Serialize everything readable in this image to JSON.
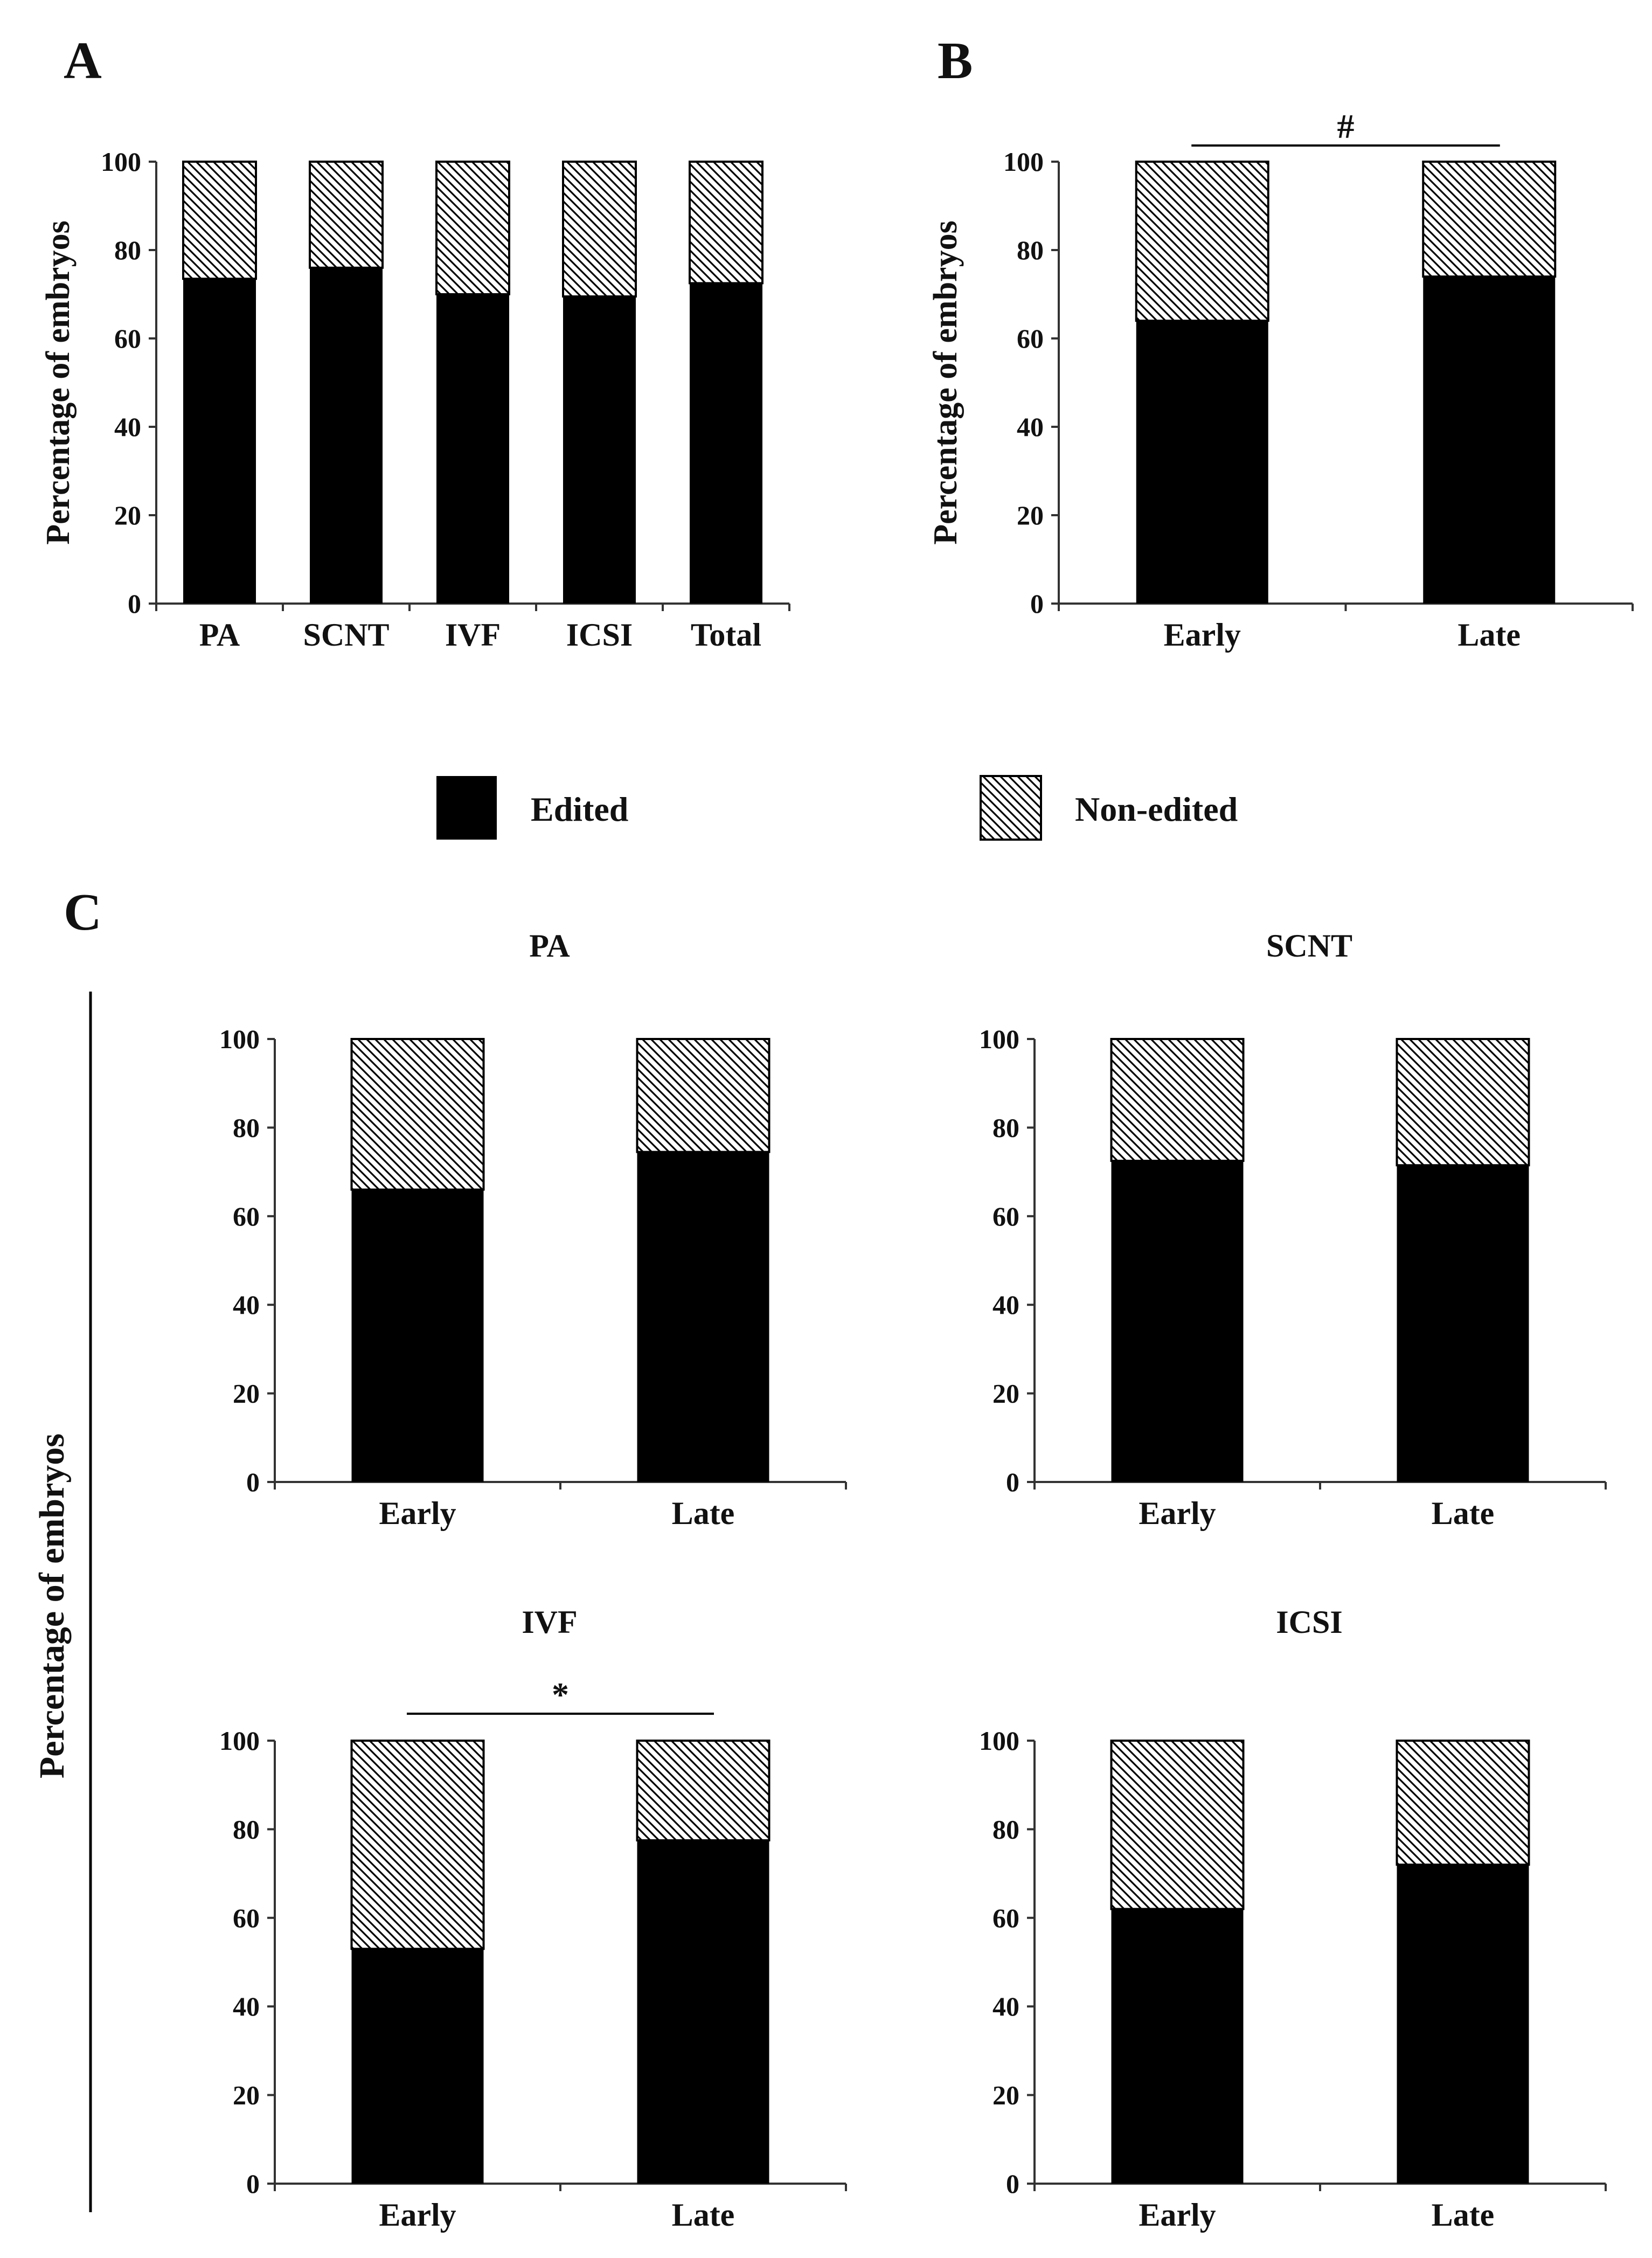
{
  "panel_labels": {
    "a": "A",
    "b": "B",
    "c": "C"
  },
  "legend": {
    "edited": "Edited",
    "non_edited": "Non-edited"
  },
  "colors": {
    "edited": "#000000",
    "non_edited_hatch": "#000000",
    "background": "#ffffff",
    "axis": "#333333"
  },
  "chart_data": [
    {
      "id": "A",
      "type": "bar",
      "stacked": true,
      "title": "",
      "ylabel": "Percentage of embryos",
      "xlabel": "",
      "ylim": [
        0,
        100
      ],
      "yticks": [
        "0",
        "20",
        "40",
        "60",
        "80",
        "100"
      ],
      "categories": [
        "PA",
        "SCNT",
        "IVF",
        "ICSI",
        "Total"
      ],
      "series": [
        {
          "name": "Edited",
          "values": [
            73.5,
            76,
            70,
            69.5,
            72.5
          ]
        },
        {
          "name": "Non-edited",
          "values": [
            26.5,
            24,
            30,
            30.5,
            27.5
          ]
        }
      ],
      "annotation": ""
    },
    {
      "id": "B",
      "type": "bar",
      "stacked": true,
      "title": "",
      "ylabel": "Percentage of embryos",
      "xlabel": "",
      "ylim": [
        0,
        100
      ],
      "yticks": [
        "0",
        "20",
        "40",
        "60",
        "80",
        "100"
      ],
      "categories": [
        "Early",
        "Late"
      ],
      "series": [
        {
          "name": "Edited",
          "values": [
            64,
            74
          ]
        },
        {
          "name": "Non-edited",
          "values": [
            36,
            26
          ]
        }
      ],
      "annotation": "#"
    },
    {
      "id": "C-PA",
      "type": "bar",
      "stacked": true,
      "title": "PA",
      "ylabel": "",
      "xlabel": "",
      "ylim": [
        0,
        100
      ],
      "yticks": [
        "0",
        "20",
        "40",
        "60",
        "80",
        "100"
      ],
      "categories": [
        "Early",
        "Late"
      ],
      "series": [
        {
          "name": "Edited",
          "values": [
            66,
            74.5
          ]
        },
        {
          "name": "Non-edited",
          "values": [
            34,
            25.5
          ]
        }
      ],
      "annotation": ""
    },
    {
      "id": "C-SCNT",
      "type": "bar",
      "stacked": true,
      "title": "SCNT",
      "ylabel": "",
      "xlabel": "",
      "ylim": [
        0,
        100
      ],
      "yticks": [
        "0",
        "20",
        "40",
        "60",
        "80",
        "100"
      ],
      "categories": [
        "Early",
        "Late"
      ],
      "series": [
        {
          "name": "Edited",
          "values": [
            72.5,
            71.5
          ]
        },
        {
          "name": "Non-edited",
          "values": [
            27.5,
            28.5
          ]
        }
      ],
      "annotation": ""
    },
    {
      "id": "C-IVF",
      "type": "bar",
      "stacked": true,
      "title": "IVF",
      "ylabel": "",
      "xlabel": "",
      "ylim": [
        0,
        100
      ],
      "yticks": [
        "0",
        "20",
        "40",
        "60",
        "80",
        "100"
      ],
      "categories": [
        "Early",
        "Late"
      ],
      "series": [
        {
          "name": "Edited",
          "values": [
            53,
            77.5
          ]
        },
        {
          "name": "Non-edited",
          "values": [
            47,
            22.5
          ]
        }
      ],
      "annotation": "*"
    },
    {
      "id": "C-ICSI",
      "type": "bar",
      "stacked": true,
      "title": "ICSI",
      "ylabel": "",
      "xlabel": "",
      "ylim": [
        0,
        100
      ],
      "yticks": [
        "0",
        "20",
        "40",
        "60",
        "80",
        "100"
      ],
      "categories": [
        "Early",
        "Late"
      ],
      "series": [
        {
          "name": "Edited",
          "values": [
            62,
            72
          ]
        },
        {
          "name": "Non-edited",
          "values": [
            38,
            28
          ]
        }
      ],
      "annotation": ""
    }
  ],
  "panel_c_ylabel": "Percentage of embryos"
}
